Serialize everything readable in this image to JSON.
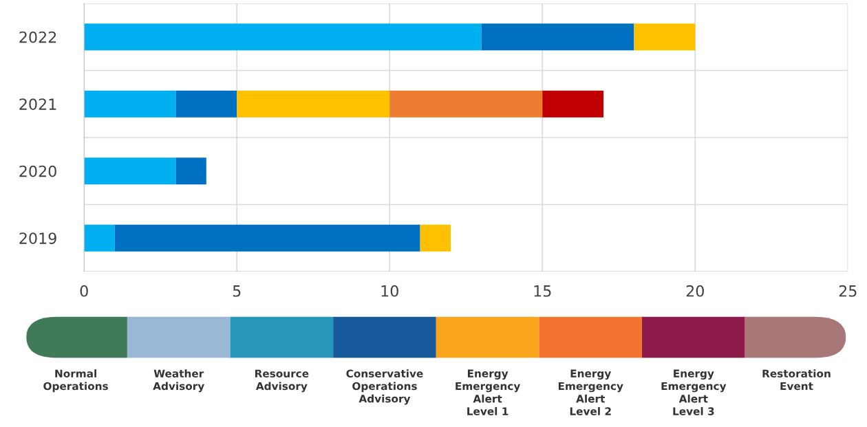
{
  "chart_data": [
    {
      "type": "bar",
      "orientation": "horizontal",
      "stacked": true,
      "categories": [
        "2022",
        "2021",
        "2020",
        "2019"
      ],
      "series": [
        {
          "color": "#00b0f0",
          "values": [
            13,
            3,
            3,
            1
          ]
        },
        {
          "color": "#0070c0",
          "values": [
            5,
            2,
            1,
            10
          ]
        },
        {
          "color": "#ffc000",
          "values": [
            2,
            5,
            null,
            1
          ]
        },
        {
          "color": "#ed7d31",
          "values": [
            null,
            5,
            null,
            null
          ]
        },
        {
          "color": "#c00000",
          "values": [
            null,
            2,
            null,
            null
          ]
        }
      ],
      "xlim": [
        0,
        25
      ],
      "xticks": [
        0,
        5,
        10,
        15,
        20,
        25
      ],
      "grid": true
    },
    {
      "type": "other",
      "categories": [
        "Normal\nOperations",
        "Weather\nAdvisory",
        "Resource\nAdvisory",
        "Conservative\nOperations\nAdvisory",
        "Energy\nEmergency\nAlert\nLevel 1",
        "Energy\nEmergency\nAlert\nLevel 2",
        "Energy\nEmergency\nAlert\nLevel 3",
        "Restoration\nEvent"
      ],
      "colors": [
        "#417a59",
        "#9ab8d6",
        "#2796bb",
        "#175a9b",
        "#f9a61c",
        "#f37430",
        "#8e1a4a",
        "#a87878"
      ]
    }
  ]
}
